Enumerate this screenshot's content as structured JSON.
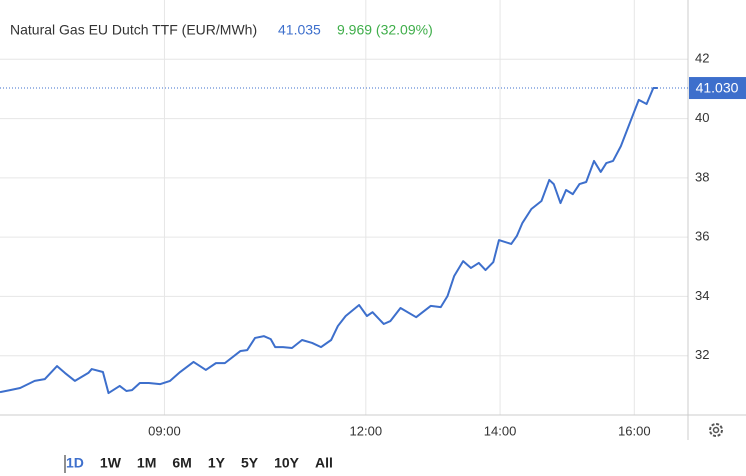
{
  "chart_data": {
    "type": "line",
    "title": "Natural Gas EU Dutch TTF (EUR/MWh)",
    "last_price": "41.035",
    "change": "9.969 (32.09%)",
    "price_label": {
      "value": 41.03,
      "label": "41.030"
    },
    "x": [
      "06:33",
      "06:42",
      "06:51",
      "07:04",
      "07:13",
      "07:24",
      "07:31",
      "07:40",
      "07:52",
      "07:55",
      "08:05",
      "08:10",
      "08:20",
      "08:26",
      "08:31",
      "08:38",
      "08:46",
      "08:56",
      "09:05",
      "09:14",
      "09:26",
      "09:37",
      "09:46",
      "09:54",
      "10:08",
      "10:14",
      "10:21",
      "10:29",
      "10:35",
      "10:39",
      "10:46",
      "10:54",
      "11:03",
      "11:12",
      "11:20",
      "11:29",
      "11:35",
      "11:42",
      "11:54",
      "12:01",
      "12:06",
      "12:16",
      "12:22",
      "12:31",
      "12:45",
      "12:58",
      "13:07",
      "13:13",
      "13:19",
      "13:27",
      "13:34",
      "13:41",
      "13:47",
      "13:54",
      "13:59",
      "14:10",
      "14:15",
      "14:20",
      "14:28",
      "14:37",
      "14:44",
      "14:48",
      "14:54",
      "14:59",
      "15:05",
      "15:11",
      "15:17",
      "15:24",
      "15:30",
      "15:35",
      "15:41",
      "15:48",
      "15:57",
      "16:04",
      "16:11",
      "16:17",
      "16:21"
    ],
    "series": [
      {
        "name": "Natural Gas EU Dutch TTF",
        "color": "#3d6fcc",
        "values": [
          30.77,
          30.84,
          30.91,
          31.15,
          31.21,
          31.65,
          31.42,
          31.15,
          31.42,
          31.55,
          31.45,
          30.74,
          30.98,
          30.81,
          30.84,
          31.08,
          31.08,
          31.04,
          31.15,
          31.45,
          31.79,
          31.52,
          31.75,
          31.75,
          32.16,
          32.19,
          32.6,
          32.66,
          32.56,
          32.29,
          32.29,
          32.26,
          32.53,
          32.43,
          32.29,
          32.53,
          33.0,
          33.34,
          33.71,
          33.34,
          33.47,
          33.07,
          33.17,
          33.61,
          33.3,
          33.68,
          33.64,
          34.01,
          34.69,
          35.19,
          34.96,
          35.13,
          34.89,
          35.16,
          35.9,
          35.77,
          36.04,
          36.48,
          36.95,
          37.22,
          37.93,
          37.79,
          37.15,
          37.59,
          37.45,
          37.79,
          37.86,
          38.57,
          38.2,
          38.5,
          38.57,
          39.07,
          39.95,
          40.63,
          40.49,
          41.03,
          41.03
        ]
      }
    ],
    "xlim": [
      "06:33",
      "16:48"
    ],
    "xticks": [
      "09:00",
      "12:00",
      "14:00",
      "16:00"
    ],
    "ylim": [
      30,
      44
    ],
    "yticks": [
      32,
      34,
      36,
      38,
      40,
      42
    ],
    "grid": true,
    "ranges": [
      "1D",
      "1W",
      "1M",
      "6M",
      "1Y",
      "5Y",
      "10Y",
      "All"
    ],
    "selected_range": "1D"
  }
}
